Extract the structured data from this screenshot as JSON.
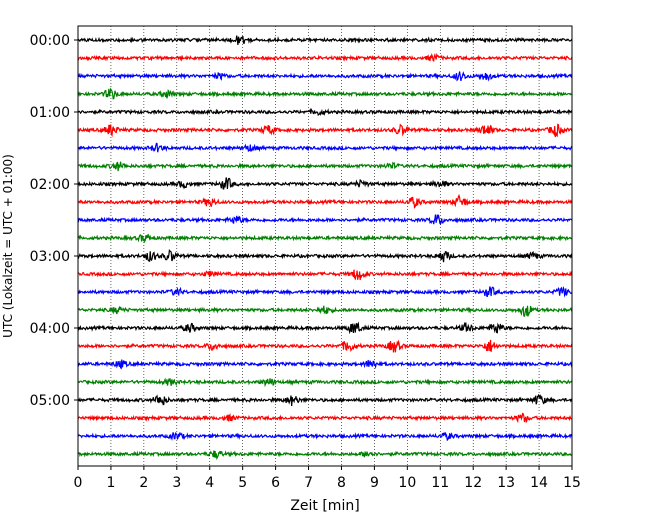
{
  "chart_data": {
    "type": "line",
    "title": "",
    "xlabel": "Zeit  [min]",
    "ylabel": "UTC (Lokalzeit = UTC + 01:00)",
    "xlim": [
      0,
      15
    ],
    "x_ticks": [
      0,
      1,
      2,
      3,
      4,
      5,
      6,
      7,
      8,
      9,
      10,
      11,
      12,
      13,
      14,
      15
    ],
    "x_tick_labels": [
      "0",
      "1",
      "2",
      "3",
      "4",
      "5",
      "6",
      "7",
      "8",
      "9",
      "10",
      "11",
      "12",
      "13",
      "14",
      "15"
    ],
    "y_tick_labels": [
      "00:00",
      "01:00",
      "02:00",
      "03:00",
      "04:00",
      "05:00"
    ],
    "grid": "vertical dotted lines at each minute",
    "trace_minutes": 15,
    "trace_colors": [
      "#000000",
      "#ff0000",
      "#0000ff",
      "#008000"
    ],
    "traces": [
      {
        "start": "00:00",
        "bursts": [
          [
            4.9,
            0.8
          ]
        ]
      },
      {
        "start": "00:15",
        "bursts": [
          [
            10.8,
            0.5
          ]
        ]
      },
      {
        "start": "00:30",
        "bursts": [
          [
            11.6,
            0.7
          ],
          [
            12.4,
            0.6
          ],
          [
            4.3,
            0.4
          ]
        ]
      },
      {
        "start": "00:45",
        "bursts": [
          [
            1.0,
            0.9
          ],
          [
            2.7,
            0.6
          ]
        ]
      },
      {
        "start": "01:00",
        "bursts": [
          [
            7.3,
            0.4
          ]
        ]
      },
      {
        "start": "01:15",
        "bursts": [
          [
            1.0,
            0.9
          ],
          [
            5.8,
            0.7
          ],
          [
            9.8,
            0.8
          ],
          [
            12.4,
            1.0
          ],
          [
            14.5,
            1.0
          ]
        ]
      },
      {
        "start": "01:30",
        "bursts": [
          [
            2.4,
            0.6
          ],
          [
            5.2,
            0.5
          ]
        ]
      },
      {
        "start": "01:45",
        "bursts": [
          [
            1.2,
            0.7
          ],
          [
            9.5,
            0.4
          ]
        ]
      },
      {
        "start": "02:00",
        "bursts": [
          [
            4.5,
            1.0
          ],
          [
            3.2,
            0.5
          ],
          [
            8.6,
            0.5
          ],
          [
            11.0,
            0.5
          ]
        ]
      },
      {
        "start": "02:15",
        "bursts": [
          [
            4.0,
            0.7
          ],
          [
            10.2,
            0.8
          ],
          [
            11.6,
            1.0
          ]
        ]
      },
      {
        "start": "02:30",
        "bursts": [
          [
            4.8,
            0.6
          ],
          [
            10.9,
            0.9
          ]
        ]
      },
      {
        "start": "02:45",
        "bursts": [
          [
            2.0,
            0.5
          ]
        ]
      },
      {
        "start": "03:00",
        "bursts": [
          [
            2.2,
            0.8
          ],
          [
            2.8,
            0.9
          ],
          [
            11.1,
            0.9
          ],
          [
            13.8,
            0.5
          ]
        ]
      },
      {
        "start": "03:15",
        "bursts": [
          [
            8.5,
            1.0
          ],
          [
            4.0,
            0.4
          ]
        ]
      },
      {
        "start": "03:30",
        "bursts": [
          [
            3.0,
            0.5
          ],
          [
            12.5,
            0.8
          ],
          [
            14.7,
            0.7
          ]
        ]
      },
      {
        "start": "03:45",
        "bursts": [
          [
            7.5,
            0.6
          ],
          [
            13.6,
            1.0
          ],
          [
            1.2,
            0.5
          ]
        ]
      },
      {
        "start": "04:00",
        "bursts": [
          [
            8.4,
            1.0
          ],
          [
            3.4,
            0.7
          ],
          [
            11.8,
            0.7
          ],
          [
            12.7,
            0.9
          ]
        ]
      },
      {
        "start": "04:15",
        "bursts": [
          [
            12.5,
            1.0
          ],
          [
            9.6,
            1.0
          ],
          [
            8.2,
            0.9
          ],
          [
            4.1,
            0.6
          ]
        ]
      },
      {
        "start": "04:30",
        "bursts": [
          [
            1.3,
            0.6
          ],
          [
            8.9,
            0.7
          ]
        ]
      },
      {
        "start": "04:45",
        "bursts": [
          [
            5.8,
            0.6
          ],
          [
            2.8,
            0.5
          ]
        ]
      },
      {
        "start": "05:00",
        "bursts": [
          [
            2.5,
            0.9
          ],
          [
            6.5,
            0.8
          ],
          [
            14.0,
            0.8
          ]
        ]
      },
      {
        "start": "05:15",
        "bursts": [
          [
            13.5,
            0.7
          ],
          [
            4.6,
            0.4
          ]
        ]
      },
      {
        "start": "05:30",
        "bursts": [
          [
            3.0,
            0.6
          ],
          [
            11.2,
            0.5
          ]
        ]
      },
      {
        "start": "05:45",
        "bursts": [
          [
            4.2,
            0.6
          ],
          [
            8.8,
            0.5
          ]
        ]
      }
    ]
  }
}
